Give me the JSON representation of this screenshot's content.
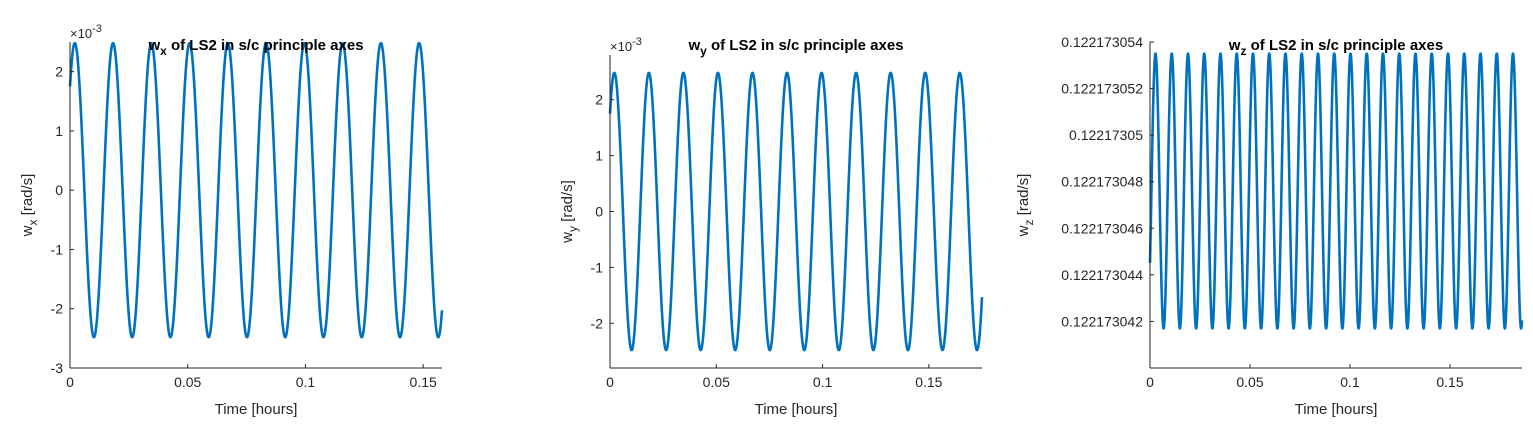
{
  "figure": {
    "background": "#ffffff",
    "axis_color": "#262626",
    "line_color": "#0072BD"
  },
  "chart_data": [
    {
      "type": "line",
      "title": {
        "main": "w",
        "sub": "x",
        "rest": " of LS2 in s/c principle axes"
      },
      "xlabel": "Time [hours]",
      "ylabel": {
        "main": "w",
        "sub": "x",
        "rest": " [rad/s]"
      },
      "exponent_label": {
        "base": "×10",
        "exp": "-3"
      },
      "xlim": [
        0,
        0.158
      ],
      "ylim": [
        -3,
        2.5
      ],
      "xticks": [
        0,
        0.05,
        0.1,
        0.15
      ],
      "xtick_labels": [
        "0",
        "0.05",
        "0.1",
        "0.15"
      ],
      "yticks": [
        -3,
        -2,
        -1,
        0,
        1,
        2
      ],
      "ytick_labels": [
        "-3",
        "-2",
        "-1",
        "0",
        "1",
        "2"
      ],
      "grid": false,
      "series": [
        {
          "color": "#0072BD",
          "formula": "amplitude*sin(2*pi*x/period + phase)",
          "amplitude": 2.48,
          "period": 0.01625,
          "phase": 0.784,
          "x_range": [
            0,
            0.158
          ],
          "units_scale": 0.001
        }
      ]
    },
    {
      "type": "line",
      "title": {
        "main": "w",
        "sub": "y",
        "rest": " of LS2 in s/c principle axes"
      },
      "xlabel": "Time [hours]",
      "ylabel": {
        "main": "w",
        "sub": "y",
        "rest": " [rad/s]"
      },
      "exponent_label": {
        "base": "×10",
        "exp": "-3"
      },
      "xlim": [
        0,
        0.175
      ],
      "ylim": [
        -2.8,
        2.8
      ],
      "xticks": [
        0,
        0.05,
        0.1,
        0.15
      ],
      "xtick_labels": [
        "0",
        "0.05",
        "0.1",
        "0.15"
      ],
      "yticks": [
        -2,
        -1,
        0,
        1,
        2
      ],
      "ytick_labels": [
        "-2",
        "-1",
        "0",
        "1",
        "2"
      ],
      "grid": false,
      "series": [
        {
          "color": "#0072BD",
          "formula": "amplitude*sin(2*pi*x/period + phase)",
          "amplitude": 2.48,
          "period": 0.01625,
          "phase": 0.784,
          "x_range": [
            0,
            0.175
          ],
          "units_scale": 0.001
        }
      ]
    },
    {
      "type": "line",
      "title": {
        "main": "w",
        "sub": "z",
        "rest": " of LS2 in s/c principle axes"
      },
      "xlabel": "Time [hours]",
      "ylabel": {
        "main": "w",
        "sub": "z",
        "rest": " [rad/s]"
      },
      "exponent_label": null,
      "xlim": [
        0,
        0.186
      ],
      "ylim": [
        0.12217304,
        0.122173054
      ],
      "xticks": [
        0,
        0.05,
        0.1,
        0.15
      ],
      "xtick_labels": [
        "0",
        "0.05",
        "0.1",
        "0.15"
      ],
      "yticks": [
        0.122173042,
        0.122173044,
        0.122173046,
        0.122173048,
        0.12217305,
        0.122173052,
        0.122173054
      ],
      "ytick_labels": [
        "0.122173042",
        "0.122173044",
        "0.122173046",
        "0.122173048",
        "0.12217305",
        "0.122173052",
        "0.122173054"
      ],
      "grid": false,
      "series": [
        {
          "color": "#0072BD",
          "formula": "center + amplitude*sin(2*pi*x/period + phase)",
          "center": 0.1221730476,
          "amplitude": 5.9e-09,
          "period": 0.008125,
          "phase": -0.55,
          "x_range": [
            0,
            0.186
          ],
          "units_scale": 1
        }
      ]
    }
  ]
}
